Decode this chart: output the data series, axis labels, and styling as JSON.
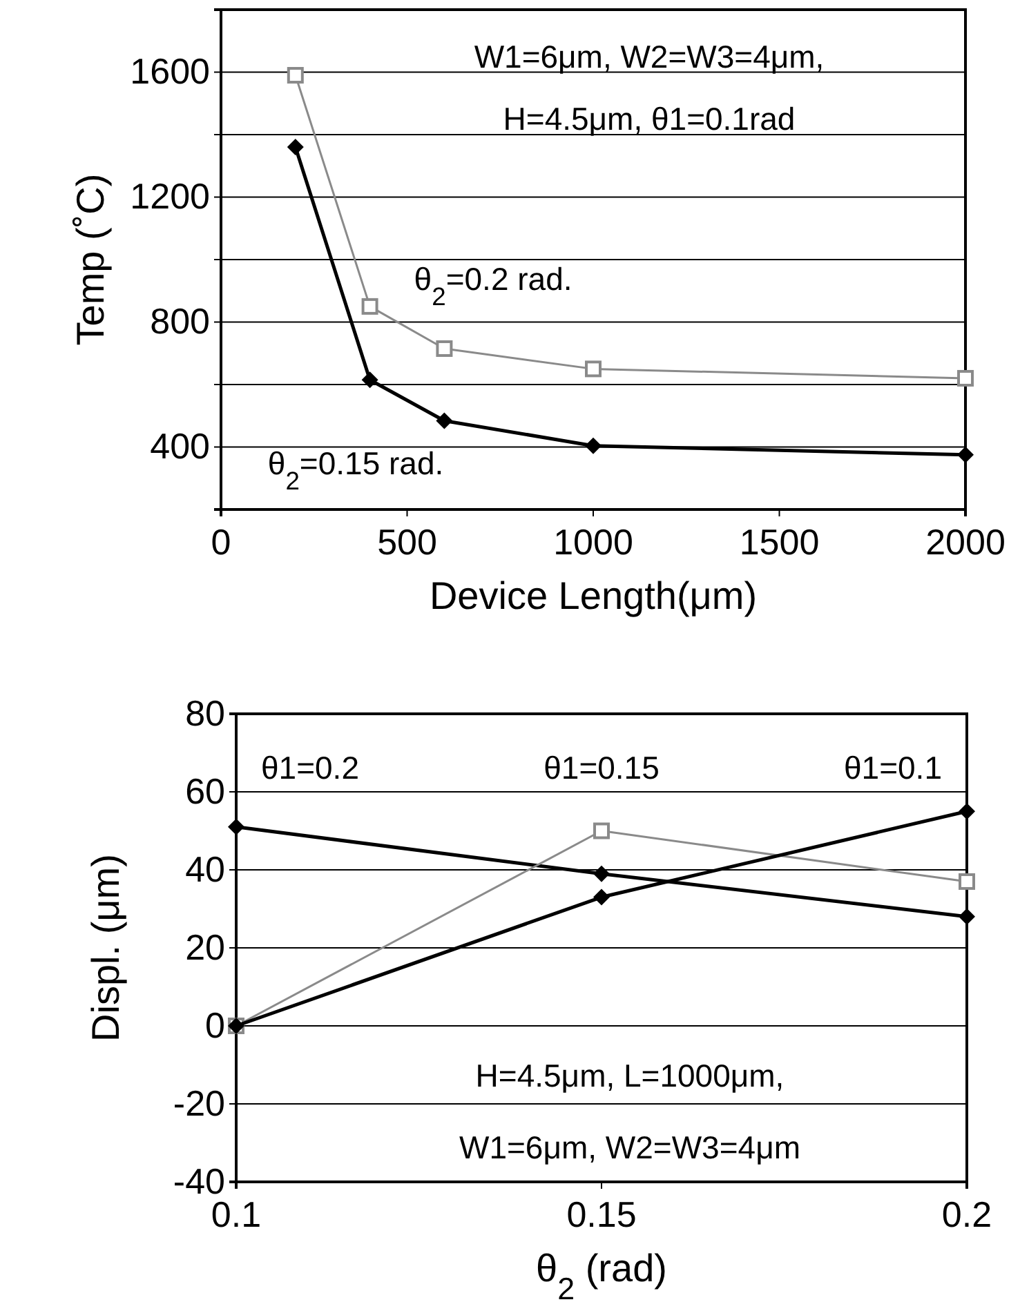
{
  "chart_data": [
    {
      "type": "line",
      "xlabel": "Device Length(μm)",
      "ylabel": "Temp (˚C)",
      "x": [
        200,
        400,
        600,
        1000,
        2000
      ],
      "series": [
        {
          "name": "θ$_{2}$=0.2 rad.",
          "color": "#8a8a8a",
          "marker": "square",
          "values": [
            1590,
            850,
            715,
            650,
            620
          ]
        },
        {
          "name": "θ$_{2}$=0.15 rad.",
          "color": "#000000",
          "marker": "diamond",
          "values": [
            1360,
            615,
            484,
            404,
            375
          ]
        }
      ],
      "xlim": [
        0,
        2000
      ],
      "xticks": [
        0,
        500,
        1000,
        1500,
        2000
      ],
      "ylim": [
        200,
        1800
      ],
      "yticks": [
        {
          "value": 200,
          "label": null
        },
        400,
        {
          "value": 600,
          "label": null
        },
        800,
        {
          "value": 1000,
          "label": null
        },
        1200,
        {
          "value": 1400,
          "label": null
        },
        1600,
        {
          "value": 1800,
          "label": null
        }
      ],
      "grid": "y",
      "annotations": [
        "W1=6μm, W2=W3=4μm,",
        "H=4.5μm, θ1=0.1rad"
      ]
    },
    {
      "type": "line",
      "xlabel": "θ$_{2}$ (rad)",
      "ylabel": "Displ. (μm)",
      "x": [
        0.1,
        0.15,
        0.2
      ],
      "series": [
        {
          "color": "#000000",
          "marker": "diamond",
          "values": [
            51,
            39,
            28
          ]
        },
        {
          "color": "#8a8a8a",
          "marker": "square",
          "values": [
            0,
            50,
            37
          ]
        },
        {
          "color": "#000000",
          "marker": "diamond",
          "values": [
            0,
            33,
            55
          ]
        }
      ],
      "xlim": [
        0.1,
        0.2
      ],
      "xticks": [
        0.1,
        0.15,
        0.2
      ],
      "ylim": [
        -40,
        80
      ],
      "yticks": [
        -40,
        -20,
        0,
        20,
        40,
        60,
        80
      ],
      "grid": "y",
      "annotations": [
        "θ1=0.2",
        "θ1=0.15",
        "θ1=0.1",
        "H=4.5μm, L=1000μm,",
        "W1=6μm, W2=W3=4μm"
      ]
    }
  ]
}
